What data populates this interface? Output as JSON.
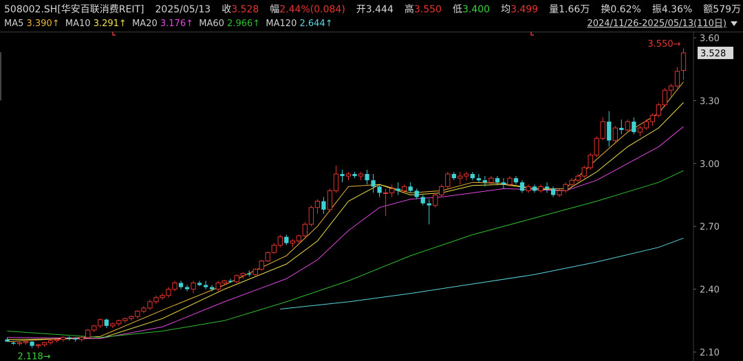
{
  "header": {
    "code": "508002.SH",
    "name": "[华安百联消费REIT]",
    "date": "2025/05/13",
    "close_label": "收",
    "close": "3.528",
    "change_label": "幅",
    "change": "2.44%(0.084)",
    "open_label": "开",
    "open": "3.444",
    "high_label": "高",
    "high": "3.550",
    "low_label": "低",
    "low": "3.400",
    "avg_label": "均",
    "avg": "3.499",
    "volume_label": "量",
    "volume": "1.66万",
    "turnover_label": "换",
    "turnover": "0.62%",
    "amplitude_label": "振",
    "amplitude": "4.36%",
    "amount_label": "额",
    "amount": "579万"
  },
  "ma_legend": [
    {
      "label": "MA5",
      "value": "3.390↑",
      "color": "#e8b53a"
    },
    {
      "label": "MA10",
      "value": "3.291↑",
      "color": "#f0e04a"
    },
    {
      "label": "MA20",
      "value": "3.176↑",
      "color": "#e048e0"
    },
    {
      "label": "MA60",
      "value": "2.966↑",
      "color": "#2fbf2f"
    },
    {
      "label": "MA120",
      "value": "2.644↑",
      "color": "#5ad6de"
    }
  ],
  "range_label": "2024/11/26-2025/05/13(110日)",
  "colors": {
    "up": "#e8352f",
    "down": "#3fd0d4",
    "grid": "#2a2a2a",
    "axis_text": "#bdbdbd",
    "price_tag_bg": "#d8d8d8"
  },
  "chart_data": {
    "type": "candlestick",
    "ylim": [
      2.1,
      3.6
    ],
    "yticks": [
      "3.60",
      "3.30",
      "3.00",
      "2.70",
      "2.40",
      "2.10"
    ],
    "last_price_label": "3.528",
    "high_marker": "3.550→",
    "low_marker": "2.118→",
    "high_value": 3.55,
    "low_value": 2.118,
    "ohlc": [
      [
        2.16,
        2.17,
        2.15,
        2.15
      ],
      [
        2.145,
        2.15,
        2.135,
        2.14
      ],
      [
        2.14,
        2.15,
        2.13,
        2.145
      ],
      [
        2.145,
        2.155,
        2.135,
        2.15
      ],
      [
        2.15,
        2.152,
        2.12,
        2.13
      ],
      [
        2.13,
        2.14,
        2.118,
        2.135
      ],
      [
        2.135,
        2.15,
        2.125,
        2.145
      ],
      [
        2.145,
        2.16,
        2.135,
        2.155
      ],
      [
        2.155,
        2.165,
        2.145,
        2.16
      ],
      [
        2.16,
        2.175,
        2.15,
        2.17
      ],
      [
        2.17,
        2.175,
        2.155,
        2.165
      ],
      [
        2.165,
        2.17,
        2.15,
        2.16
      ],
      [
        2.16,
        2.175,
        2.15,
        2.17
      ],
      [
        2.17,
        2.21,
        2.165,
        2.205
      ],
      [
        2.205,
        2.23,
        2.195,
        2.225
      ],
      [
        2.225,
        2.26,
        2.215,
        2.255
      ],
      [
        2.255,
        2.26,
        2.215,
        2.225
      ],
      [
        2.225,
        2.24,
        2.215,
        2.235
      ],
      [
        2.235,
        2.255,
        2.225,
        2.25
      ],
      [
        2.25,
        2.265,
        2.24,
        2.26
      ],
      [
        2.26,
        2.275,
        2.25,
        2.27
      ],
      [
        2.27,
        2.3,
        2.26,
        2.295
      ],
      [
        2.295,
        2.32,
        2.285,
        2.31
      ],
      [
        2.31,
        2.35,
        2.3,
        2.34
      ],
      [
        2.34,
        2.37,
        2.33,
        2.36
      ],
      [
        2.36,
        2.38,
        2.35,
        2.37
      ],
      [
        2.37,
        2.41,
        2.36,
        2.4
      ],
      [
        2.4,
        2.44,
        2.39,
        2.43
      ],
      [
        2.43,
        2.44,
        2.4,
        2.41
      ],
      [
        2.41,
        2.42,
        2.39,
        2.4
      ],
      [
        2.4,
        2.44,
        2.38,
        2.43
      ],
      [
        2.43,
        2.44,
        2.415,
        2.42
      ],
      [
        2.42,
        2.44,
        2.4,
        2.41
      ],
      [
        2.41,
        2.42,
        2.39,
        2.4
      ],
      [
        2.4,
        2.44,
        2.39,
        2.43
      ],
      [
        2.43,
        2.445,
        2.42,
        2.44
      ],
      [
        2.44,
        2.45,
        2.43,
        2.435
      ],
      [
        2.435,
        2.47,
        2.43,
        2.465
      ],
      [
        2.465,
        2.48,
        2.45,
        2.475
      ],
      [
        2.475,
        2.49,
        2.46,
        2.47
      ],
      [
        2.47,
        2.5,
        2.46,
        2.495
      ],
      [
        2.495,
        2.54,
        2.49,
        2.535
      ],
      [
        2.535,
        2.58,
        2.53,
        2.575
      ],
      [
        2.575,
        2.62,
        2.57,
        2.61
      ],
      [
        2.61,
        2.66,
        2.6,
        2.65
      ],
      [
        2.65,
        2.66,
        2.61,
        2.62
      ],
      [
        2.62,
        2.64,
        2.6,
        2.63
      ],
      [
        2.63,
        2.66,
        2.62,
        2.655
      ],
      [
        2.655,
        2.72,
        2.64,
        2.71
      ],
      [
        2.71,
        2.8,
        2.7,
        2.79
      ],
      [
        2.79,
        2.83,
        2.76,
        2.82
      ],
      [
        2.82,
        2.84,
        2.76,
        2.78
      ],
      [
        2.78,
        2.88,
        2.77,
        2.87
      ],
      [
        2.87,
        2.99,
        2.86,
        2.95
      ],
      [
        2.95,
        2.97,
        2.91,
        2.94
      ],
      [
        2.94,
        2.96,
        2.92,
        2.95
      ],
      [
        2.95,
        2.96,
        2.93,
        2.94
      ],
      [
        2.94,
        2.96,
        2.92,
        2.95
      ],
      [
        2.95,
        2.97,
        2.9,
        2.92
      ],
      [
        2.92,
        2.95,
        2.86,
        2.89
      ],
      [
        2.89,
        2.9,
        2.84,
        2.86
      ],
      [
        2.86,
        2.88,
        2.75,
        2.86
      ],
      [
        2.86,
        2.9,
        2.84,
        2.88
      ],
      [
        2.88,
        2.91,
        2.85,
        2.87
      ],
      [
        2.87,
        2.9,
        2.86,
        2.89
      ],
      [
        2.89,
        2.91,
        2.86,
        2.87
      ],
      [
        2.87,
        2.88,
        2.83,
        2.84
      ],
      [
        2.84,
        2.85,
        2.8,
        2.81
      ],
      [
        2.81,
        2.83,
        2.71,
        2.8
      ],
      [
        2.8,
        2.86,
        2.79,
        2.85
      ],
      [
        2.85,
        2.9,
        2.84,
        2.89
      ],
      [
        2.89,
        2.96,
        2.88,
        2.95
      ],
      [
        2.95,
        2.96,
        2.92,
        2.93
      ],
      [
        2.93,
        2.96,
        2.9,
        2.94
      ],
      [
        2.94,
        2.96,
        2.92,
        2.95
      ],
      [
        2.95,
        2.96,
        2.92,
        2.93
      ],
      [
        2.93,
        2.95,
        2.91,
        2.92
      ],
      [
        2.92,
        2.94,
        2.89,
        2.91
      ],
      [
        2.91,
        2.94,
        2.9,
        2.93
      ],
      [
        2.93,
        2.94,
        2.9,
        2.91
      ],
      [
        2.91,
        2.93,
        2.88,
        2.9
      ],
      [
        2.9,
        2.94,
        2.89,
        2.93
      ],
      [
        2.93,
        2.94,
        2.9,
        2.91
      ],
      [
        2.91,
        2.92,
        2.86,
        2.87
      ],
      [
        2.87,
        2.9,
        2.86,
        2.89
      ],
      [
        2.89,
        2.9,
        2.86,
        2.87
      ],
      [
        2.87,
        2.9,
        2.86,
        2.89
      ],
      [
        2.89,
        2.91,
        2.86,
        2.88
      ],
      [
        2.88,
        2.89,
        2.84,
        2.85
      ],
      [
        2.85,
        2.88,
        2.84,
        2.87
      ],
      [
        2.87,
        2.91,
        2.86,
        2.9
      ],
      [
        2.9,
        2.93,
        2.89,
        2.92
      ],
      [
        2.92,
        2.95,
        2.91,
        2.94
      ],
      [
        2.94,
        2.99,
        2.93,
        2.98
      ],
      [
        2.98,
        3.05,
        2.97,
        3.04
      ],
      [
        3.04,
        3.13,
        3.03,
        3.12
      ],
      [
        3.12,
        3.22,
        3.11,
        3.2
      ],
      [
        3.2,
        3.25,
        3.08,
        3.11
      ],
      [
        3.11,
        3.18,
        3.1,
        3.17
      ],
      [
        3.17,
        3.21,
        3.14,
        3.16
      ],
      [
        3.16,
        3.21,
        3.15,
        3.2
      ],
      [
        3.2,
        3.22,
        3.14,
        3.15
      ],
      [
        3.15,
        3.18,
        3.13,
        3.17
      ],
      [
        3.17,
        3.21,
        3.16,
        3.2
      ],
      [
        3.2,
        3.24,
        3.18,
        3.23
      ],
      [
        3.23,
        3.29,
        3.22,
        3.28
      ],
      [
        3.28,
        3.36,
        3.27,
        3.35
      ],
      [
        3.35,
        3.38,
        3.32,
        3.37
      ],
      [
        3.37,
        3.46,
        3.36,
        3.44
      ],
      [
        3.444,
        3.55,
        3.4,
        3.528
      ]
    ],
    "ma5": [
      [
        0,
        2.15
      ],
      [
        15,
        2.175
      ],
      [
        25,
        2.3
      ],
      [
        35,
        2.42
      ],
      [
        45,
        2.56
      ],
      [
        50,
        2.7
      ],
      [
        55,
        2.89
      ],
      [
        60,
        2.9
      ],
      [
        65,
        2.86
      ],
      [
        70,
        2.87
      ],
      [
        75,
        2.91
      ],
      [
        80,
        2.905
      ],
      [
        85,
        2.88
      ],
      [
        90,
        2.88
      ],
      [
        95,
        3.02
      ],
      [
        100,
        3.15
      ],
      [
        105,
        3.24
      ],
      [
        109,
        3.39
      ]
    ],
    "ma10": [
      [
        0,
        2.16
      ],
      [
        15,
        2.165
      ],
      [
        25,
        2.26
      ],
      [
        35,
        2.4
      ],
      [
        45,
        2.52
      ],
      [
        50,
        2.63
      ],
      [
        55,
        2.82
      ],
      [
        60,
        2.9
      ],
      [
        65,
        2.85
      ],
      [
        70,
        2.86
      ],
      [
        75,
        2.895
      ],
      [
        80,
        2.9
      ],
      [
        85,
        2.88
      ],
      [
        90,
        2.87
      ],
      [
        95,
        2.96
      ],
      [
        100,
        3.08
      ],
      [
        105,
        3.17
      ],
      [
        109,
        3.291
      ]
    ],
    "ma20": [
      [
        0,
        2.17
      ],
      [
        15,
        2.165
      ],
      [
        25,
        2.22
      ],
      [
        35,
        2.34
      ],
      [
        45,
        2.45
      ],
      [
        50,
        2.54
      ],
      [
        55,
        2.68
      ],
      [
        60,
        2.79
      ],
      [
        65,
        2.83
      ],
      [
        70,
        2.84
      ],
      [
        75,
        2.86
      ],
      [
        80,
        2.88
      ],
      [
        85,
        2.875
      ],
      [
        90,
        2.87
      ],
      [
        95,
        2.92
      ],
      [
        100,
        3.0
      ],
      [
        105,
        3.08
      ],
      [
        109,
        3.176
      ]
    ],
    "ma60": [
      [
        0,
        2.2
      ],
      [
        15,
        2.17
      ],
      [
        25,
        2.2
      ],
      [
        35,
        2.25
      ],
      [
        45,
        2.34
      ],
      [
        55,
        2.44
      ],
      [
        65,
        2.56
      ],
      [
        75,
        2.66
      ],
      [
        85,
        2.74
      ],
      [
        95,
        2.82
      ],
      [
        105,
        2.91
      ],
      [
        109,
        2.966
      ]
    ],
    "ma120": [
      [
        44,
        2.305
      ],
      [
        55,
        2.34
      ],
      [
        65,
        2.38
      ],
      [
        75,
        2.425
      ],
      [
        85,
        2.47
      ],
      [
        95,
        2.53
      ],
      [
        105,
        2.6
      ],
      [
        109,
        2.644
      ]
    ]
  }
}
